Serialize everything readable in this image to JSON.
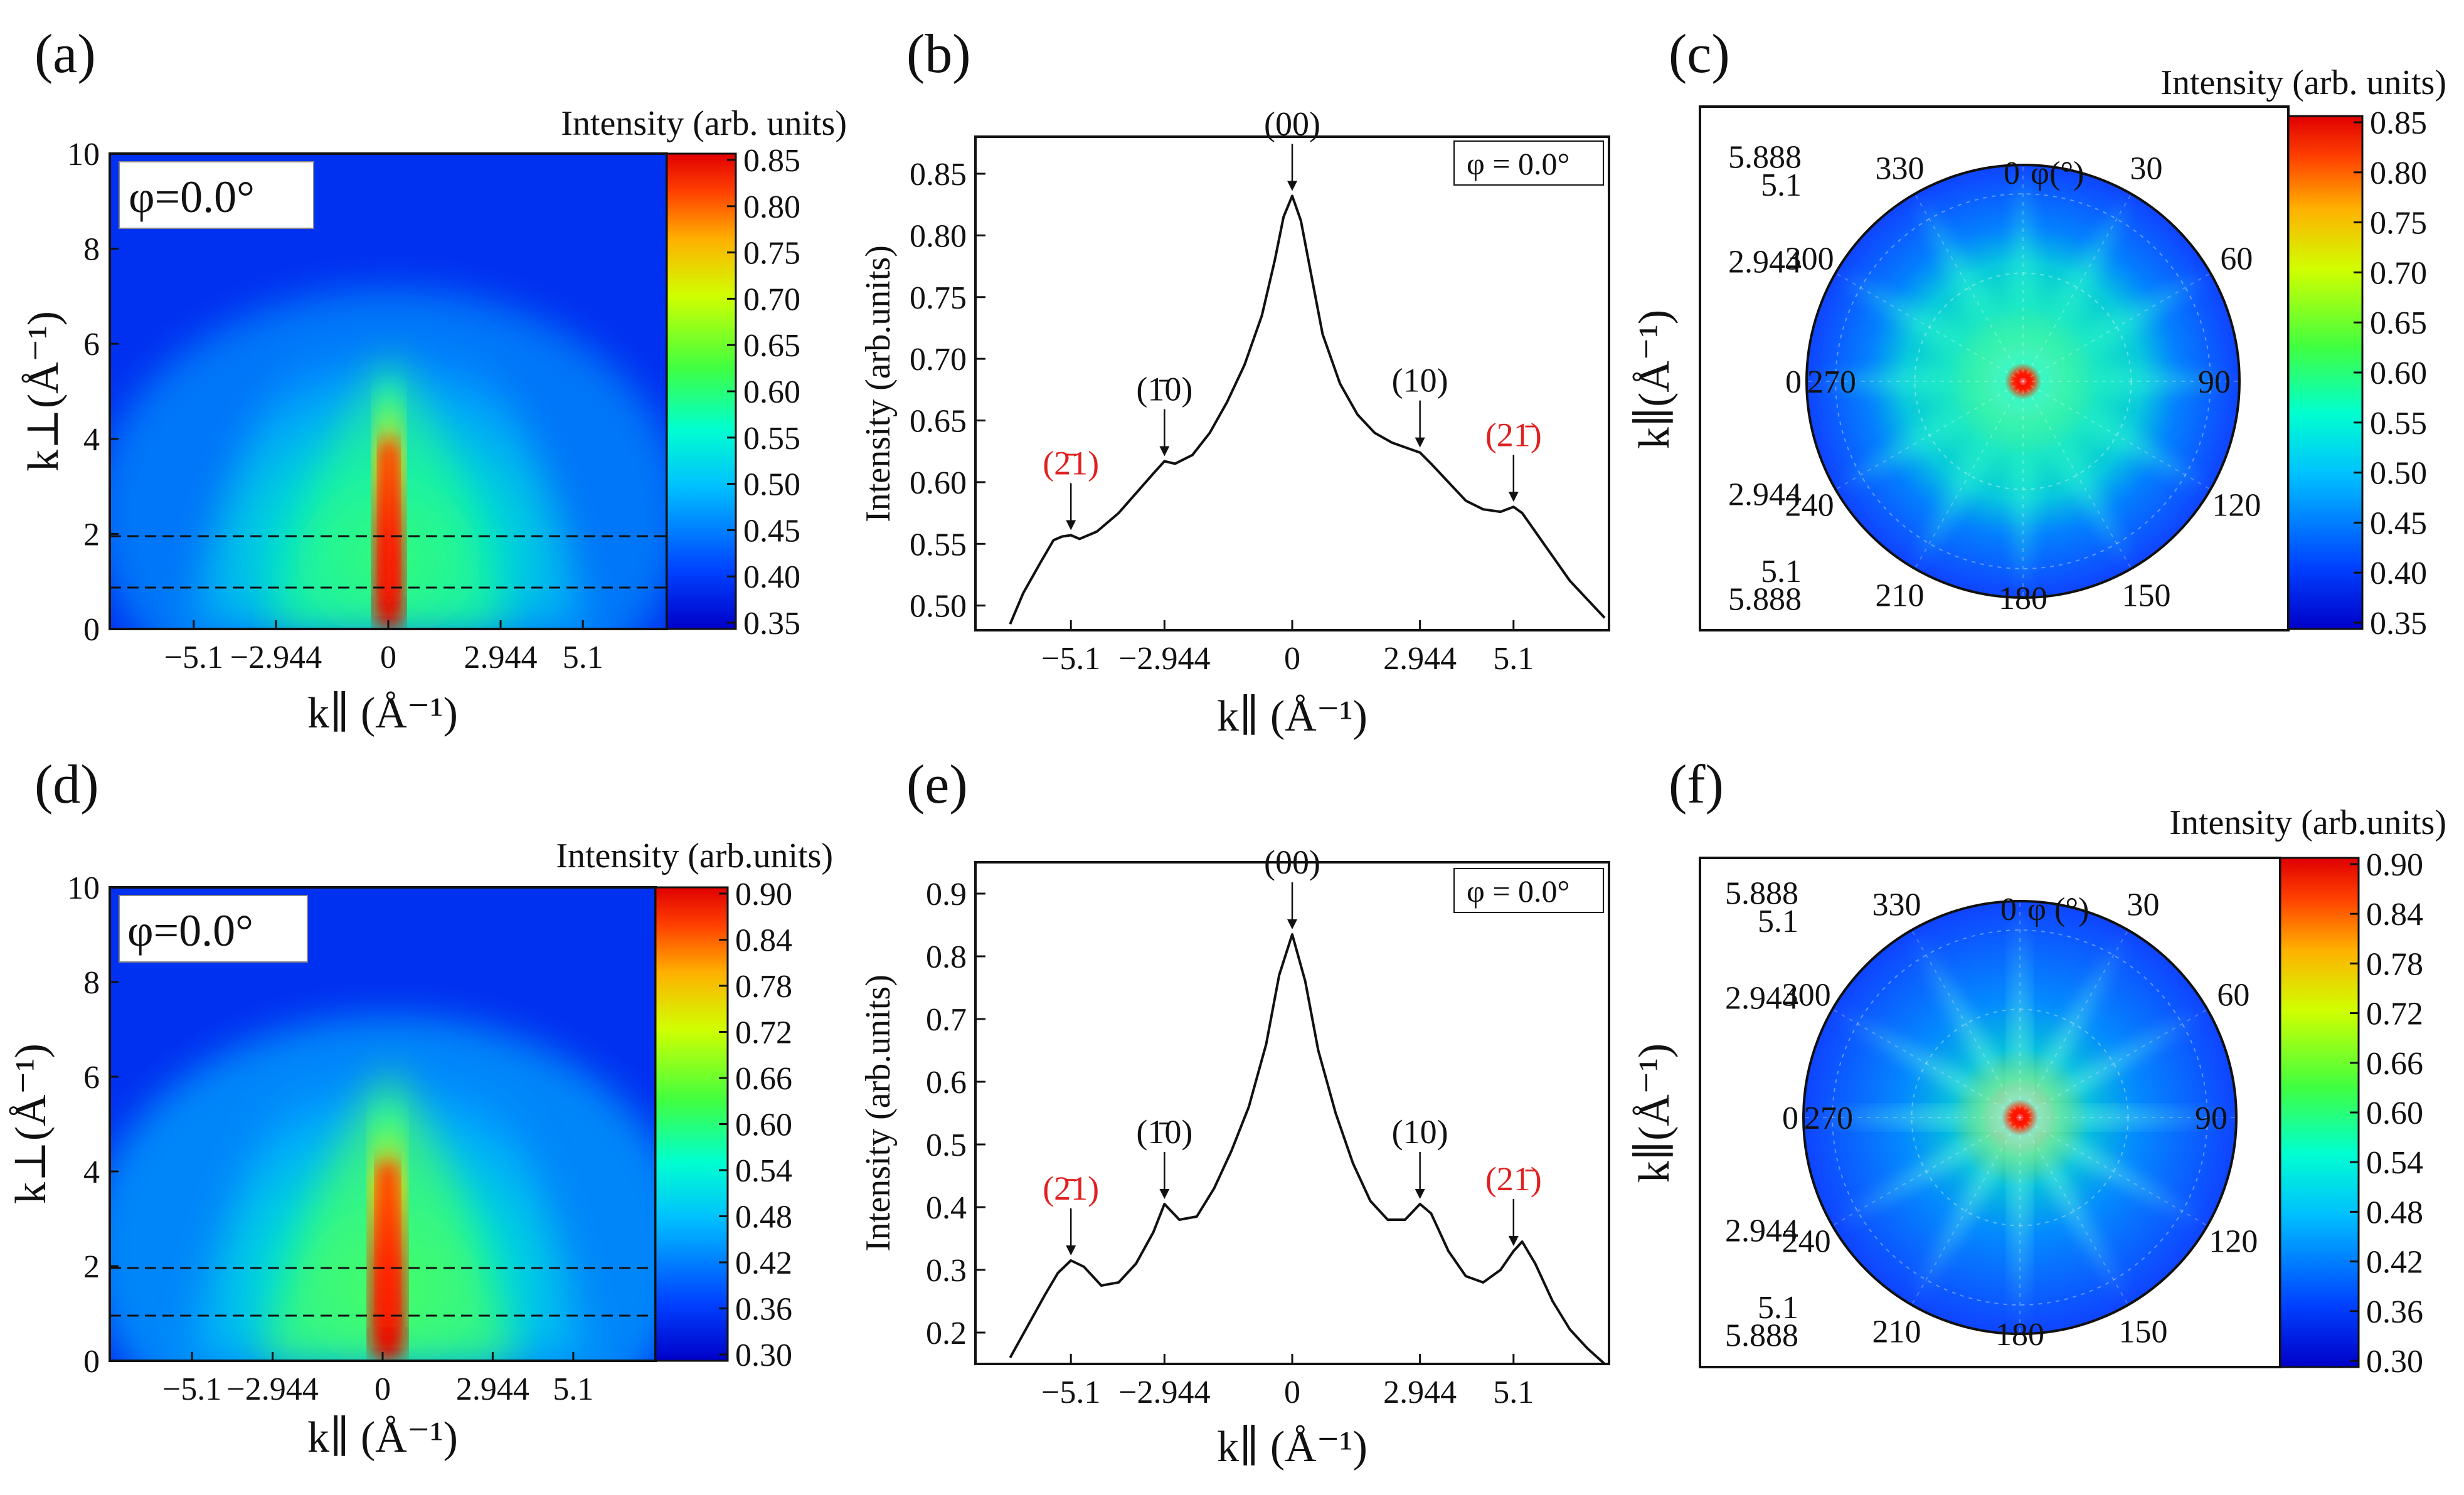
{
  "figure": {
    "panels": [
      {
        "id": "a",
        "label": "(a)",
        "type": "heatmap",
        "phi_label": "φ=0.0°",
        "colorbar_title": "Intensity (arb. units)",
        "colorbar_ticks": [
          "0.85",
          "0.80",
          "0.75",
          "0.70",
          "0.65",
          "0.60",
          "0.55",
          "0.50",
          "0.45",
          "0.40",
          "0.35"
        ],
        "cmin": 0.35,
        "cmax": 0.85
      },
      {
        "id": "b",
        "label": "(b)",
        "type": "line",
        "ylabel": "Intensity (arb.units)",
        "phi_label": "φ = 0.0°"
      },
      {
        "id": "c",
        "label": "(c)",
        "type": "polar",
        "colorbar_title": "Intensity (arb. units)",
        "colorbar_ticks": [
          "0.85",
          "0.80",
          "0.75",
          "0.70",
          "0.65",
          "0.60",
          "0.55",
          "0.50",
          "0.45",
          "0.40",
          "0.35"
        ],
        "angle_title": "φ(°)",
        "center_label": "0",
        "ylabel": "k∥(Å⁻¹)"
      },
      {
        "id": "d",
        "label": "(d)",
        "type": "heatmap",
        "phi_label": "φ=0.0°",
        "colorbar_title": "Intensity (arb.units)",
        "colorbar_ticks": [
          "0.90",
          "0.84",
          "0.78",
          "0.72",
          "0.66",
          "0.60",
          "0.54",
          "0.48",
          "0.42",
          "0.36",
          "0.30"
        ],
        "cmin": 0.3,
        "cmax": 0.9
      },
      {
        "id": "e",
        "label": "(e)",
        "type": "line",
        "ylabel": "Intensity (arb.units)",
        "phi_label": "φ = 0.0°"
      },
      {
        "id": "f",
        "label": "(f)",
        "type": "polar",
        "colorbar_title": "Intensity (arb.units)",
        "colorbar_ticks": [
          "0.90",
          "0.84",
          "0.78",
          "0.72",
          "0.66",
          "0.60",
          "0.54",
          "0.48",
          "0.42",
          "0.36",
          "0.30"
        ],
        "angle_title": "φ (°)",
        "center_label": "0",
        "ylabel": "k∥(Å⁻¹)"
      }
    ]
  },
  "chart_data": [
    {
      "type": "heatmap",
      "panel": "a",
      "title": "",
      "xlabel": "k∥ (Å⁻¹)",
      "ylabel": "k⊥(Å⁻¹)",
      "x_ticks": [
        "−5.1",
        "−2.944",
        "0",
        "2.944",
        "5.1"
      ],
      "x_tick_values": [
        -5.1,
        -2.944,
        0,
        2.944,
        5.1
      ],
      "y_ticks": [
        "0",
        "2",
        "4",
        "6",
        "8",
        "10"
      ],
      "y_tick_values": [
        0,
        2,
        4,
        6,
        8,
        10
      ],
      "xlim": [
        -7.3,
        7.3
      ],
      "ylim": [
        0,
        10
      ],
      "dashed_lines_y": [
        0.9,
        1.95
      ],
      "colorbar_range": [
        0.35,
        0.85
      ]
    },
    {
      "type": "line",
      "panel": "b",
      "xlabel": "k∥ (Å⁻¹)",
      "ylabel": "Intensity (arb.units)",
      "x_ticks": [
        "−5.1",
        "−2.944",
        "0",
        "2.944",
        "5.1"
      ],
      "x_tick_values": [
        -5.1,
        -2.944,
        0,
        2.944,
        5.1
      ],
      "y_ticks": [
        "0.50",
        "0.55",
        "0.60",
        "0.65",
        "0.70",
        "0.75",
        "0.80",
        "0.85"
      ],
      "y_tick_values": [
        0.5,
        0.55,
        0.6,
        0.65,
        0.7,
        0.75,
        0.8,
        0.85
      ],
      "xlim": [
        -7.3,
        7.3
      ],
      "ylim": [
        0.48,
        0.88
      ],
      "series": [
        {
          "name": "φ = 0.0°",
          "x": [
            -6.5,
            -6.2,
            -5.8,
            -5.5,
            -5.3,
            -5.1,
            -4.9,
            -4.5,
            -4.0,
            -3.5,
            -3.2,
            -2.944,
            -2.7,
            -2.3,
            -1.9,
            -1.5,
            -1.1,
            -0.7,
            -0.4,
            -0.2,
            0,
            0.2,
            0.4,
            0.7,
            1.1,
            1.5,
            1.9,
            2.3,
            2.7,
            2.944,
            3.2,
            3.6,
            4.0,
            4.4,
            4.8,
            5.1,
            5.3,
            5.5,
            5.8,
            6.1,
            6.4,
            6.8,
            7.2
          ],
          "y": [
            0.485,
            0.51,
            0.535,
            0.553,
            0.556,
            0.557,
            0.554,
            0.56,
            0.575,
            0.595,
            0.607,
            0.617,
            0.615,
            0.622,
            0.64,
            0.665,
            0.695,
            0.735,
            0.78,
            0.815,
            0.832,
            0.812,
            0.775,
            0.72,
            0.68,
            0.655,
            0.64,
            0.632,
            0.627,
            0.624,
            0.615,
            0.6,
            0.585,
            0.578,
            0.576,
            0.58,
            0.575,
            0.565,
            0.55,
            0.535,
            0.52,
            0.505,
            0.49
          ]
        }
      ],
      "annotations": [
        {
          "text": "(00)",
          "x": 0,
          "color": "black"
        },
        {
          "text": "(1̄0)",
          "x": -2.944,
          "color": "black"
        },
        {
          "text": "(10)",
          "x": 2.944,
          "color": "black"
        },
        {
          "text": "(2̄1)",
          "x": -5.1,
          "color": "red"
        },
        {
          "text": "(21̄)",
          "x": 5.1,
          "color": "red"
        }
      ]
    },
    {
      "type": "polar",
      "panel": "c",
      "angle_ticks": [
        "0",
        "30",
        "60",
        "90",
        "120",
        "150",
        "180",
        "210",
        "240",
        "270",
        "300",
        "330"
      ],
      "radial_ticks": [
        "5.888",
        "5.1",
        "2.944",
        "0",
        "2.944",
        "5.1",
        "5.888"
      ],
      "radial_values": [
        2.944,
        5.1,
        5.888
      ],
      "rmax": 5.888,
      "colorbar_range": [
        0.35,
        0.85
      ]
    },
    {
      "type": "heatmap",
      "panel": "d",
      "xlabel": "k∥ (Å⁻¹)",
      "ylabel": "k⊥(Å⁻¹)",
      "x_ticks": [
        "−5.1",
        "−2.944",
        "0",
        "2.944",
        "5.1"
      ],
      "x_tick_values": [
        -5.1,
        -2.944,
        0,
        2.944,
        5.1
      ],
      "y_ticks": [
        "0",
        "2",
        "4",
        "6",
        "8",
        "10"
      ],
      "y_tick_values": [
        0,
        2,
        4,
        6,
        8,
        10
      ],
      "xlim": [
        -7.3,
        7.3
      ],
      "ylim": [
        0,
        10
      ],
      "dashed_lines_y": [
        0.95,
        1.95
      ],
      "colorbar_range": [
        0.3,
        0.9
      ]
    },
    {
      "type": "line",
      "panel": "e",
      "xlabel": "k∥ (Å⁻¹)",
      "ylabel": "Intensity (arb.units)",
      "x_ticks": [
        "−5.1",
        "−2.944",
        "0",
        "2.944",
        "5.1"
      ],
      "x_tick_values": [
        -5.1,
        -2.944,
        0,
        2.944,
        5.1
      ],
      "y_ticks": [
        "0.2",
        "0.3",
        "0.4",
        "0.5",
        "0.6",
        "0.7",
        "0.8",
        "0.9"
      ],
      "y_tick_values": [
        0.2,
        0.3,
        0.4,
        0.5,
        0.6,
        0.7,
        0.8,
        0.9
      ],
      "xlim": [
        -7.3,
        7.3
      ],
      "ylim": [
        0.15,
        0.95
      ],
      "series": [
        {
          "name": "φ = 0.0°",
          "x": [
            -6.5,
            -6.1,
            -5.7,
            -5.4,
            -5.1,
            -4.8,
            -4.4,
            -4.0,
            -3.6,
            -3.2,
            -2.944,
            -2.6,
            -2.2,
            -1.8,
            -1.4,
            -1.0,
            -0.6,
            -0.3,
            0,
            0.3,
            0.6,
            1.0,
            1.4,
            1.8,
            2.2,
            2.6,
            2.944,
            3.2,
            3.6,
            4.0,
            4.4,
            4.8,
            5.1,
            5.3,
            5.6,
            6.0,
            6.4,
            6.8,
            7.2
          ],
          "y": [
            0.16,
            0.21,
            0.26,
            0.295,
            0.315,
            0.305,
            0.275,
            0.28,
            0.31,
            0.36,
            0.405,
            0.38,
            0.385,
            0.43,
            0.49,
            0.56,
            0.66,
            0.77,
            0.835,
            0.76,
            0.65,
            0.55,
            0.47,
            0.41,
            0.38,
            0.38,
            0.405,
            0.39,
            0.33,
            0.29,
            0.28,
            0.3,
            0.33,
            0.345,
            0.31,
            0.25,
            0.205,
            0.175,
            0.15
          ]
        }
      ],
      "annotations": [
        {
          "text": "(00)",
          "x": 0,
          "color": "black"
        },
        {
          "text": "(1̄0)",
          "x": -2.944,
          "color": "black"
        },
        {
          "text": "(10)",
          "x": 2.944,
          "color": "black"
        },
        {
          "text": "(2̄1)",
          "x": -5.1,
          "color": "red"
        },
        {
          "text": "(21̄)",
          "x": 5.1,
          "color": "red"
        }
      ]
    },
    {
      "type": "polar",
      "panel": "f",
      "angle_ticks": [
        "0",
        "30",
        "60",
        "90",
        "120",
        "150",
        "180",
        "210",
        "240",
        "270",
        "300",
        "330"
      ],
      "radial_ticks": [
        "5.888",
        "5.1",
        "2.944",
        "0",
        "2.944",
        "5.1",
        "5.888"
      ],
      "radial_values": [
        2.944,
        5.1,
        5.888
      ],
      "rmax": 5.888,
      "colorbar_range": [
        0.3,
        0.9
      ]
    }
  ]
}
